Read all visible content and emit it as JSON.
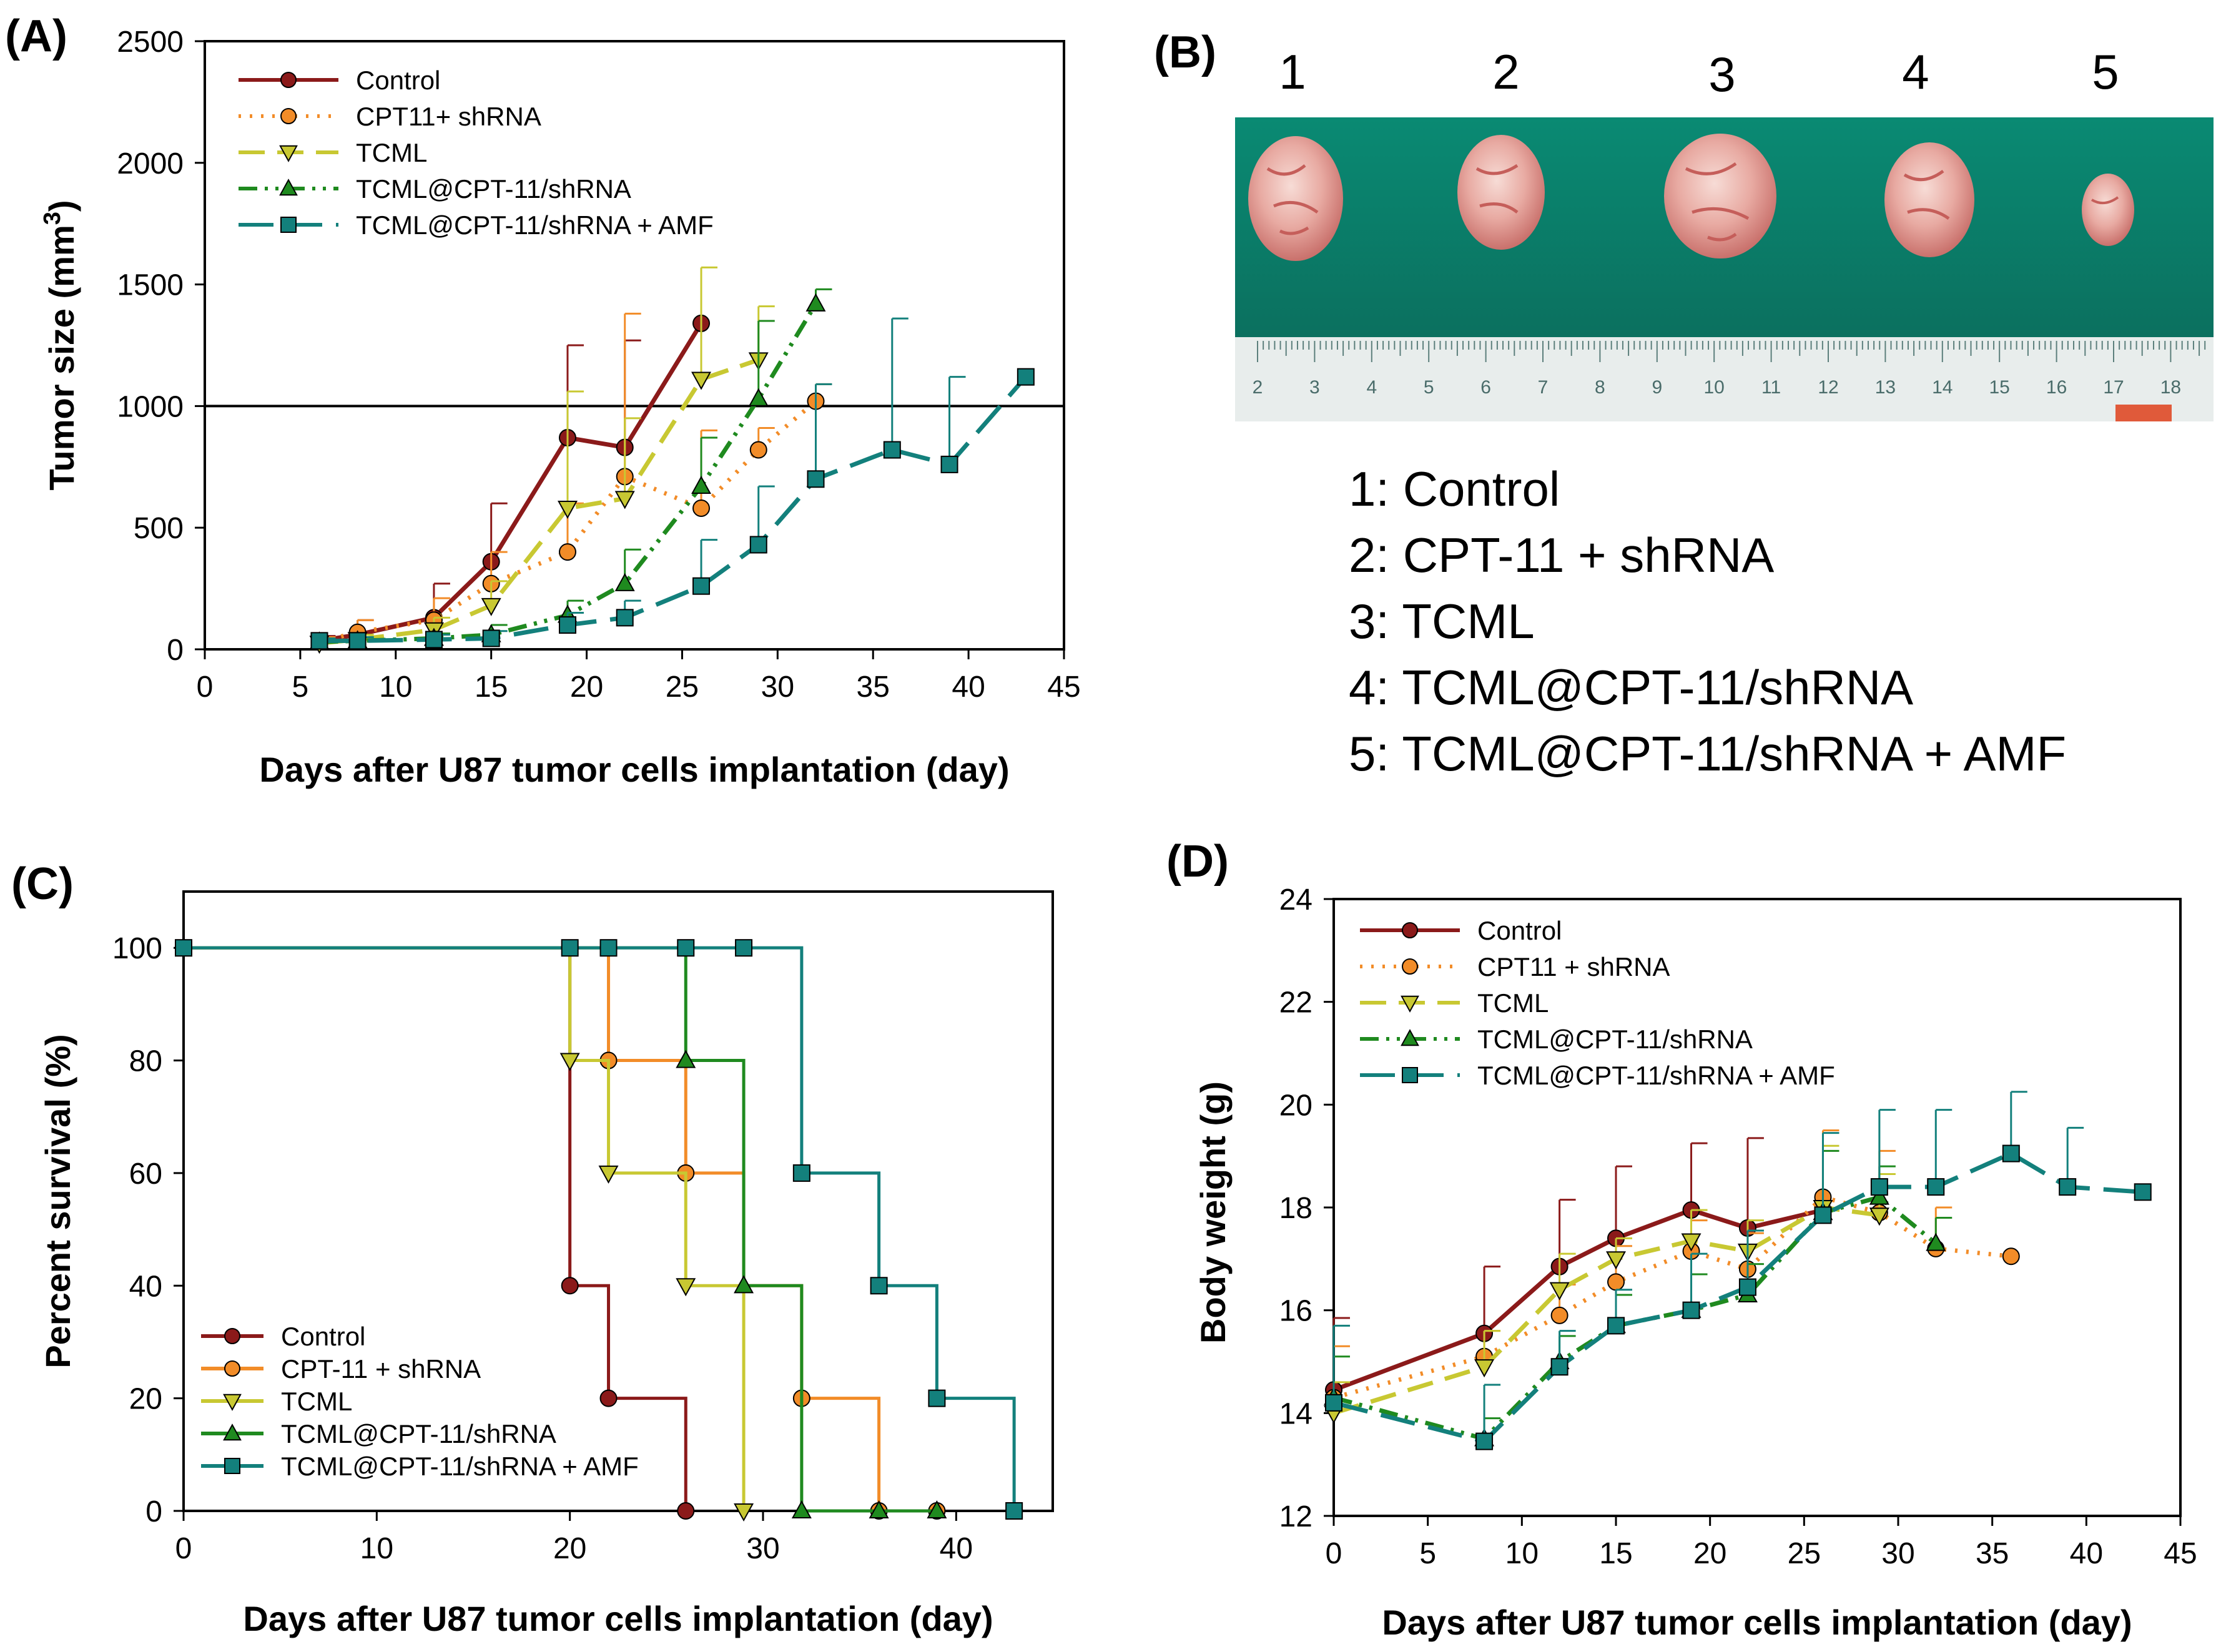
{
  "panels": {
    "A": "(A)",
    "B": "(B)",
    "C": "(C)",
    "D": "(D)"
  },
  "colors": {
    "control": "#8B1A1A",
    "cpt": "#F28C28",
    "tcml": "#C8C832",
    "tcml_cpt": "#1F8A1F",
    "amf": "#13807C",
    "tissue_bg": "#0E7F6A"
  },
  "chart_data": [
    {
      "id": "A",
      "type": "line",
      "xlabel": "Days after U87 tumor cells implantation (day)",
      "ylabel": "Tumor size (mm",
      "ylabel_sup": "3",
      "ylabel_close": ")",
      "xlim": [
        0,
        45
      ],
      "ylim": [
        0,
        2500
      ],
      "xticks": [
        "0",
        "5",
        "10",
        "15",
        "20",
        "25",
        "30",
        "35",
        "40",
        "45"
      ],
      "yticks": [
        "0",
        "500",
        "1000",
        "1500",
        "2000",
        "2500"
      ],
      "reference_line": 1000,
      "legend_position": "top-left",
      "series": [
        {
          "name": "Control",
          "color": "#8B1A1A",
          "marker": "circle",
          "dash": "solid",
          "x": [
            6,
            8,
            12,
            15,
            19,
            22,
            26
          ],
          "y": [
            35,
            60,
            130,
            360,
            870,
            830,
            1340
          ],
          "err": [
            20,
            60,
            140,
            240,
            380,
            440,
            0
          ]
        },
        {
          "name": "CPT11+ shRNA",
          "color": "#F28C28",
          "marker": "circle",
          "dash": "dot",
          "x": [
            6,
            8,
            12,
            15,
            19,
            22,
            26,
            29,
            32
          ],
          "y": [
            30,
            70,
            120,
            270,
            400,
            710,
            580,
            820,
            1020
          ],
          "err": [
            20,
            50,
            90,
            130,
            200,
            670,
            320,
            90,
            70
          ]
        },
        {
          "name": "TCML",
          "color": "#C8C832",
          "marker": "triangle-down",
          "dash": "dash",
          "x": [
            6,
            8,
            12,
            15,
            19,
            22,
            26,
            29
          ],
          "y": [
            25,
            40,
            80,
            180,
            580,
            620,
            1110,
            1190
          ],
          "err": [
            10,
            20,
            50,
            100,
            480,
            330,
            460,
            220
          ]
        },
        {
          "name": "TCML@CPT-11/shRNA",
          "color": "#1F8A1F",
          "marker": "triangle-up",
          "dash": "dashdotdot",
          "x": [
            6,
            8,
            12,
            15,
            19,
            22,
            26,
            29,
            32
          ],
          "y": [
            30,
            35,
            45,
            60,
            140,
            270,
            670,
            1030,
            1420
          ],
          "err": [
            10,
            15,
            20,
            40,
            60,
            140,
            200,
            320,
            60
          ]
        },
        {
          "name": "TCML@CPT-11/shRNA + AMF",
          "color": "#13807C",
          "marker": "square",
          "dash": "longdash",
          "x": [
            6,
            8,
            12,
            15,
            19,
            22,
            26,
            29,
            32,
            36,
            39,
            43
          ],
          "y": [
            35,
            35,
            40,
            45,
            100,
            130,
            260,
            430,
            700,
            820,
            760,
            1120
          ],
          "err": [
            10,
            15,
            20,
            30,
            50,
            70,
            190,
            240,
            390,
            540,
            360,
            0
          ]
        }
      ]
    },
    {
      "id": "C",
      "type": "line",
      "xlabel": "Days after U87 tumor cells implantation (day)",
      "ylabel": "Percent survival (%)",
      "xlim": [
        0,
        45
      ],
      "ylim": [
        0,
        110
      ],
      "xticks": [
        "0",
        "10",
        "20",
        "30",
        "40"
      ],
      "yticks": [
        "0",
        "20",
        "40",
        "60",
        "80",
        "100"
      ],
      "legend_position": "bottom-left",
      "series": [
        {
          "name": "Control",
          "color": "#8B1A1A",
          "marker": "circle",
          "x": [
            0,
            20,
            20,
            22,
            22,
            26,
            26
          ],
          "y": [
            100,
            100,
            40,
            40,
            20,
            20,
            0
          ],
          "mx": [
            0,
            20,
            22,
            26
          ],
          "my": [
            100,
            40,
            20,
            0
          ]
        },
        {
          "name": "CPT-11 + shRNA",
          "color": "#F28C28",
          "marker": "circle",
          "x": [
            0,
            22,
            22,
            26,
            26,
            29,
            29,
            32,
            32,
            36,
            36,
            39
          ],
          "y": [
            100,
            100,
            80,
            80,
            60,
            60,
            40,
            40,
            20,
            20,
            0,
            0
          ],
          "mx": [
            22,
            26,
            32,
            36,
            39
          ],
          "my": [
            80,
            60,
            20,
            0,
            0
          ]
        },
        {
          "name": "TCML",
          "color": "#C8C832",
          "marker": "triangle-down",
          "x": [
            0,
            20,
            20,
            22,
            22,
            26,
            26,
            29,
            29
          ],
          "y": [
            100,
            100,
            80,
            80,
            60,
            60,
            40,
            40,
            0
          ],
          "mx": [
            20,
            22,
            26,
            29
          ],
          "my": [
            80,
            60,
            40,
            0
          ]
        },
        {
          "name": "TCML@CPT-11/shRNA",
          "color": "#1F8A1F",
          "marker": "triangle-up",
          "x": [
            0,
            26,
            26,
            29,
            29,
            32,
            32,
            36,
            39
          ],
          "y": [
            100,
            100,
            80,
            80,
            40,
            40,
            0,
            0,
            0
          ],
          "mx": [
            26,
            29,
            32,
            36,
            39
          ],
          "my": [
            80,
            40,
            0,
            0,
            0
          ]
        },
        {
          "name": "TCML@CPT-11/shRNA + AMF",
          "color": "#13807C",
          "marker": "square",
          "x": [
            0,
            32,
            32,
            36,
            36,
            39,
            39,
            43,
            43
          ],
          "y": [
            100,
            100,
            60,
            60,
            40,
            40,
            20,
            20,
            0
          ],
          "mx": [
            0,
            20,
            22,
            26,
            29,
            32,
            36,
            39,
            43
          ],
          "my": [
            100,
            100,
            100,
            100,
            100,
            60,
            40,
            20,
            0
          ]
        }
      ]
    },
    {
      "id": "D",
      "type": "line",
      "xlabel": "Days after U87 tumor cells implantation (day)",
      "ylabel": "Body weight (g)",
      "xlim": [
        0,
        45
      ],
      "ylim": [
        12,
        24
      ],
      "xticks": [
        "0",
        "5",
        "10",
        "15",
        "20",
        "25",
        "30",
        "35",
        "40",
        "45"
      ],
      "yticks": [
        "12",
        "14",
        "16",
        "18",
        "20",
        "22",
        "24"
      ],
      "legend_position": "top-left",
      "series": [
        {
          "name": "Control",
          "color": "#8B1A1A",
          "marker": "circle",
          "dash": "solid",
          "x": [
            0,
            8,
            12,
            15,
            19,
            22,
            26
          ],
          "y": [
            14.45,
            15.55,
            16.85,
            17.4,
            17.95,
            17.6,
            17.95
          ],
          "err": [
            1.4,
            1.3,
            1.3,
            1.4,
            1.3,
            1.75,
            0
          ]
        },
        {
          "name": "CPT11 + shRNA",
          "color": "#F28C28",
          "marker": "circle",
          "dash": "dot",
          "x": [
            0,
            8,
            12,
            15,
            19,
            22,
            26,
            29,
            32,
            36
          ],
          "y": [
            14.3,
            15.1,
            15.9,
            16.55,
            17.15,
            16.8,
            18.2,
            17.9,
            17.2,
            17.05
          ],
          "err": [
            1.0,
            0.5,
            0.6,
            0.7,
            0.6,
            0.7,
            1.3,
            1.2,
            0.8,
            0
          ]
        },
        {
          "name": "TCML",
          "color": "#C8C832",
          "marker": "triangle-down",
          "dash": "dash",
          "x": [
            0,
            8,
            12,
            15,
            19,
            22,
            26,
            29
          ],
          "y": [
            14.0,
            14.9,
            16.4,
            17.0,
            17.35,
            17.15,
            18.0,
            17.85
          ],
          "err": [
            0.6,
            0.7,
            0.7,
            0.4,
            0.6,
            0.6,
            1.2,
            0.8
          ]
        },
        {
          "name": "TCML@CPT-11/shRNA",
          "color": "#1F8A1F",
          "marker": "triangle-up",
          "dash": "dashdotdot",
          "x": [
            0,
            8,
            12,
            15,
            19,
            22,
            26,
            29,
            32
          ],
          "y": [
            14.3,
            13.5,
            15.0,
            15.7,
            16.0,
            16.3,
            17.9,
            18.2,
            17.3
          ],
          "err": [
            0.8,
            0.4,
            0.5,
            0.6,
            0.7,
            0.6,
            1.2,
            0.6,
            0.5
          ]
        },
        {
          "name": "TCML@CPT-11/shRNA + AMF",
          "color": "#13807C",
          "marker": "square",
          "dash": "longdash",
          "x": [
            0,
            8,
            12,
            15,
            19,
            22,
            26,
            29,
            32,
            36,
            39,
            43
          ],
          "y": [
            14.2,
            13.45,
            14.9,
            15.7,
            16.0,
            16.45,
            17.85,
            18.4,
            18.4,
            19.05,
            18.4,
            18.3
          ],
          "err": [
            1.5,
            1.1,
            0.7,
            0.7,
            1.1,
            1.1,
            1.6,
            1.5,
            1.5,
            1.2,
            1.15,
            0
          ]
        }
      ]
    }
  ],
  "panelB": {
    "numbers": [
      "1",
      "2",
      "3",
      "4",
      "5"
    ],
    "ruler_numbers": [
      "2",
      "3",
      "4",
      "5",
      "6",
      "7",
      "8",
      "9",
      "10",
      "11",
      "12",
      "13",
      "14",
      "15",
      "16",
      "17",
      "18"
    ],
    "legend": [
      "1: Control",
      "2: CPT-11 + shRNA",
      "3: TCML",
      "4: TCML@CPT-11/shRNA",
      "5: TCML@CPT-11/shRNA + AMF"
    ]
  }
}
